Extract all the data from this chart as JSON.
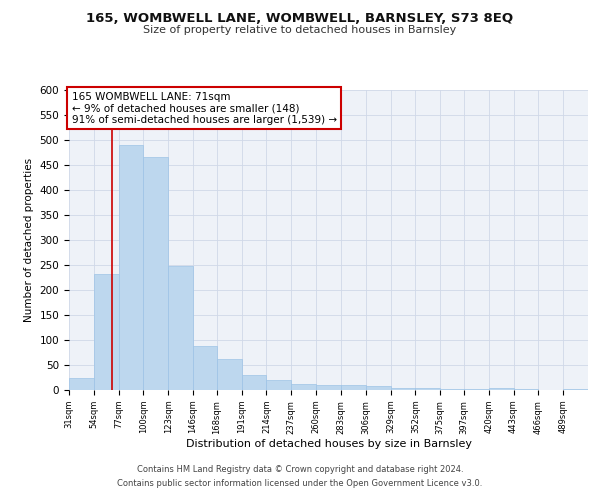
{
  "title1": "165, WOMBWELL LANE, WOMBWELL, BARNSLEY, S73 8EQ",
  "title2": "Size of property relative to detached houses in Barnsley",
  "xlabel": "Distribution of detached houses by size in Barnsley",
  "ylabel": "Number of detached properties",
  "bar_edges": [
    31,
    54,
    77,
    100,
    123,
    146,
    168,
    191,
    214,
    237,
    260,
    283,
    306,
    329,
    352,
    375,
    397,
    420,
    443,
    466,
    489
  ],
  "bar_heights": [
    25,
    232,
    490,
    467,
    248,
    88,
    63,
    30,
    20,
    13,
    11,
    10,
    8,
    5,
    4,
    3,
    2,
    5,
    2,
    1,
    2
  ],
  "bar_color": "#bdd7ee",
  "bar_edge_color": "#9dc3e6",
  "grid_color": "#d0d8e8",
  "background_color": "#eef2f8",
  "property_size": 71,
  "annotation_box_text": "165 WOMBWELL LANE: 71sqm\n← 9% of detached houses are smaller (148)\n91% of semi-detached houses are larger (1,539) →",
  "annotation_box_color": "#ffffff",
  "annotation_box_edge_color": "#cc0000",
  "vline_color": "#cc0000",
  "ylim": [
    0,
    600
  ],
  "yticks": [
    0,
    50,
    100,
    150,
    200,
    250,
    300,
    350,
    400,
    450,
    500,
    550,
    600
  ],
  "footer1": "Contains HM Land Registry data © Crown copyright and database right 2024.",
  "footer2": "Contains public sector information licensed under the Open Government Licence v3.0.",
  "title1_fontsize": 9.5,
  "title2_fontsize": 8,
  "ylabel_fontsize": 7.5,
  "xlabel_fontsize": 8,
  "ytick_fontsize": 7.5,
  "xtick_fontsize": 6,
  "annotation_fontsize": 7.5,
  "footer_fontsize": 6
}
